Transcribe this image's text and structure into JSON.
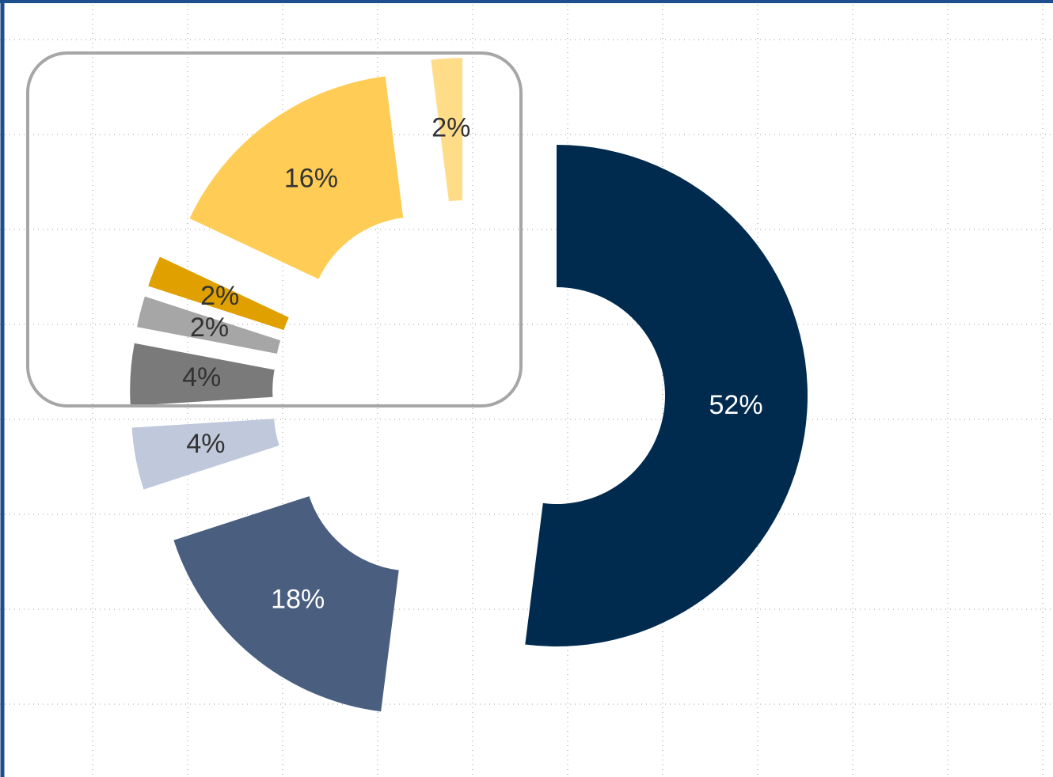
{
  "chart_data": {
    "type": "donut",
    "values": [
      52,
      18,
      4,
      4,
      2,
      2,
      16,
      2
    ],
    "value_labels": [
      "52%",
      "18%",
      "4%",
      "4%",
      "2%",
      "2%",
      "16%",
      "2%"
    ],
    "colors": [
      "#002b4f",
      "#4a5e80",
      "#bfc9db",
      "#7a7a7a",
      "#a6a6a6",
      "#e0a000",
      "#ffcc55",
      "#ffdd88"
    ]
  }
}
